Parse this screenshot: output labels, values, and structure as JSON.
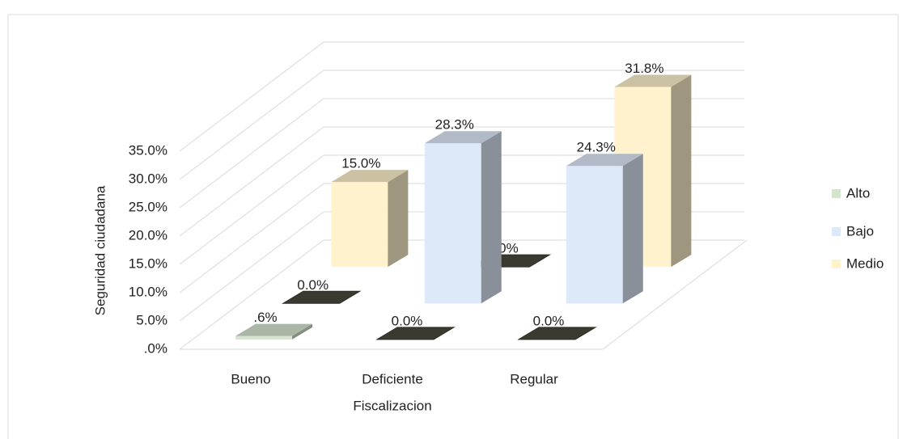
{
  "chart_data": {
    "type": "bar3d",
    "x_label": "Fiscalizacion",
    "y_label": "Seguridad ciudadana",
    "categories": [
      "Bueno",
      "Deficiente",
      "Regular"
    ],
    "series": [
      {
        "name": "Alto",
        "color": "#d6e4cf",
        "values": [
          0.6,
          0.0,
          0.0
        ],
        "value_labels": [
          ".6%",
          "0.0%",
          "0.0%"
        ]
      },
      {
        "name": "Bajo",
        "color": "#dde9f8",
        "values": [
          0.0,
          28.3,
          24.3
        ],
        "value_labels": [
          "0.0%",
          "28.3%",
          "24.3%"
        ]
      },
      {
        "name": "Medio",
        "color": "#fff2cc",
        "values": [
          15.0,
          0.0,
          31.8
        ],
        "value_labels": [
          "15.0%",
          "0.0%",
          "31.8%"
        ]
      }
    ],
    "ylim": [
      0,
      35
    ],
    "yticks": [
      {
        "value": 0,
        "label": ".0%"
      },
      {
        "value": 5,
        "label": "5.0%"
      },
      {
        "value": 10,
        "label": "10.0%"
      },
      {
        "value": 15,
        "label": "15.0%"
      },
      {
        "value": 20,
        "label": "20.0%"
      },
      {
        "value": 25,
        "label": "25.0%"
      },
      {
        "value": 30,
        "label": "30.0%"
      },
      {
        "value": 35,
        "label": "35.0%"
      }
    ],
    "grid": true,
    "legend": "right"
  }
}
